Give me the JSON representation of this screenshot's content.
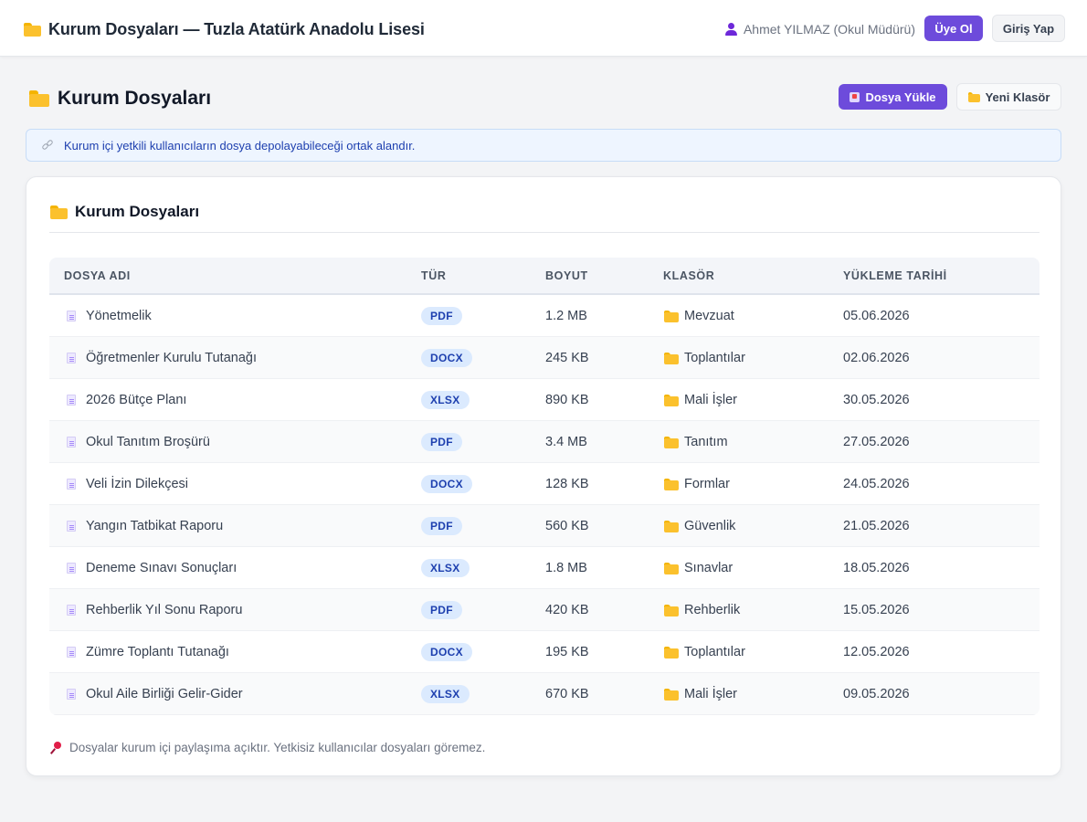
{
  "header": {
    "brand_title": "Kurum Dosyaları — Tuzla Atatürk Anadolu Lisesi",
    "user_name": "Ahmet YILMAZ (Okul Müdürü)",
    "register_label": "Üye Ol",
    "login_label": "Giriş Yap"
  },
  "page": {
    "title": "Kurum Dosyaları",
    "upload_label": "Dosya Yükle",
    "new_folder_label": "Yeni Klasör",
    "info_text": "Kurum içi yetkili kullanıcıların dosya depolayabileceği ortak alandır."
  },
  "card": {
    "title": "Kurum Dosyaları",
    "columns": [
      "DOSYA ADI",
      "TÜR",
      "BOYUT",
      "KLASÖR",
      "YÜKLEME TARİHİ"
    ],
    "rows": [
      {
        "name": "Yönetmelik",
        "type": "PDF",
        "size": "1.2 MB",
        "folder": "Mevzuat",
        "date": "05.06.2026"
      },
      {
        "name": "Öğretmenler Kurulu Tutanağı",
        "type": "DOCX",
        "size": "245 KB",
        "folder": "Toplantılar",
        "date": "02.06.2026"
      },
      {
        "name": "2026 Bütçe Planı",
        "type": "XLSX",
        "size": "890 KB",
        "folder": "Mali İşler",
        "date": "30.05.2026"
      },
      {
        "name": "Okul Tanıtım Broşürü",
        "type": "PDF",
        "size": "3.4 MB",
        "folder": "Tanıtım",
        "date": "27.05.2026"
      },
      {
        "name": "Veli İzin Dilekçesi",
        "type": "DOCX",
        "size": "128 KB",
        "folder": "Formlar",
        "date": "24.05.2026"
      },
      {
        "name": "Yangın Tatbikat Raporu",
        "type": "PDF",
        "size": "560 KB",
        "folder": "Güvenlik",
        "date": "21.05.2026"
      },
      {
        "name": "Deneme Sınavı Sonuçları",
        "type": "XLSX",
        "size": "1.8 MB",
        "folder": "Sınavlar",
        "date": "18.05.2026"
      },
      {
        "name": "Rehberlik Yıl Sonu Raporu",
        "type": "PDF",
        "size": "420 KB",
        "folder": "Rehberlik",
        "date": "15.05.2026"
      },
      {
        "name": "Zümre Toplantı Tutanağı",
        "type": "DOCX",
        "size": "195 KB",
        "folder": "Toplantılar",
        "date": "12.05.2026"
      },
      {
        "name": "Okul Aile Birliği Gelir-Gider",
        "type": "XLSX",
        "size": "670 KB",
        "folder": "Mali İşler",
        "date": "09.05.2026"
      }
    ],
    "footnote": "Dosyalar kurum içi paylaşıma açıktır. Yetkisiz kullanıcılar dosyaları göremez."
  },
  "colors": {
    "accent": "#6d4bdb",
    "badge_bg": "#dbeafe",
    "badge_text": "#1e40af",
    "info_bg": "#eef5ff",
    "folder": "#fbc12d"
  },
  "icons": {
    "brand": "folder-icon",
    "user": "user-icon",
    "upload": "upload-icon",
    "new_folder": "folder-icon",
    "info": "link-icon",
    "file": "document-icon",
    "footnote": "pushpin-icon"
  }
}
